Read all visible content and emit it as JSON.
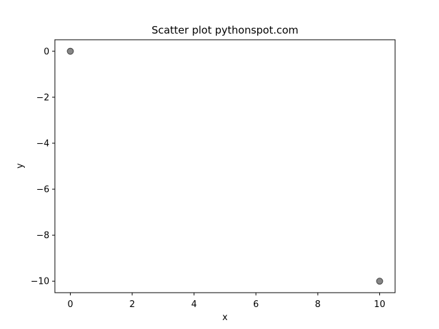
{
  "chart_data": {
    "type": "scatter",
    "title": "Scatter plot pythonspot.com",
    "xlabel": "x",
    "ylabel": "y",
    "xlim": [
      -0.5,
      10.5
    ],
    "ylim": [
      -10.5,
      0.5
    ],
    "xticks": [
      0,
      2,
      4,
      6,
      8,
      10
    ],
    "yticks": [
      0,
      -2,
      -4,
      -6,
      -8,
      -10
    ],
    "grid": false,
    "series": [
      {
        "points": [
          {
            "x": 0,
            "y": 0
          },
          {
            "x": 10,
            "y": -10
          }
        ],
        "color": "#808080",
        "edge_color": "#404040",
        "alpha": 0.5
      }
    ]
  }
}
